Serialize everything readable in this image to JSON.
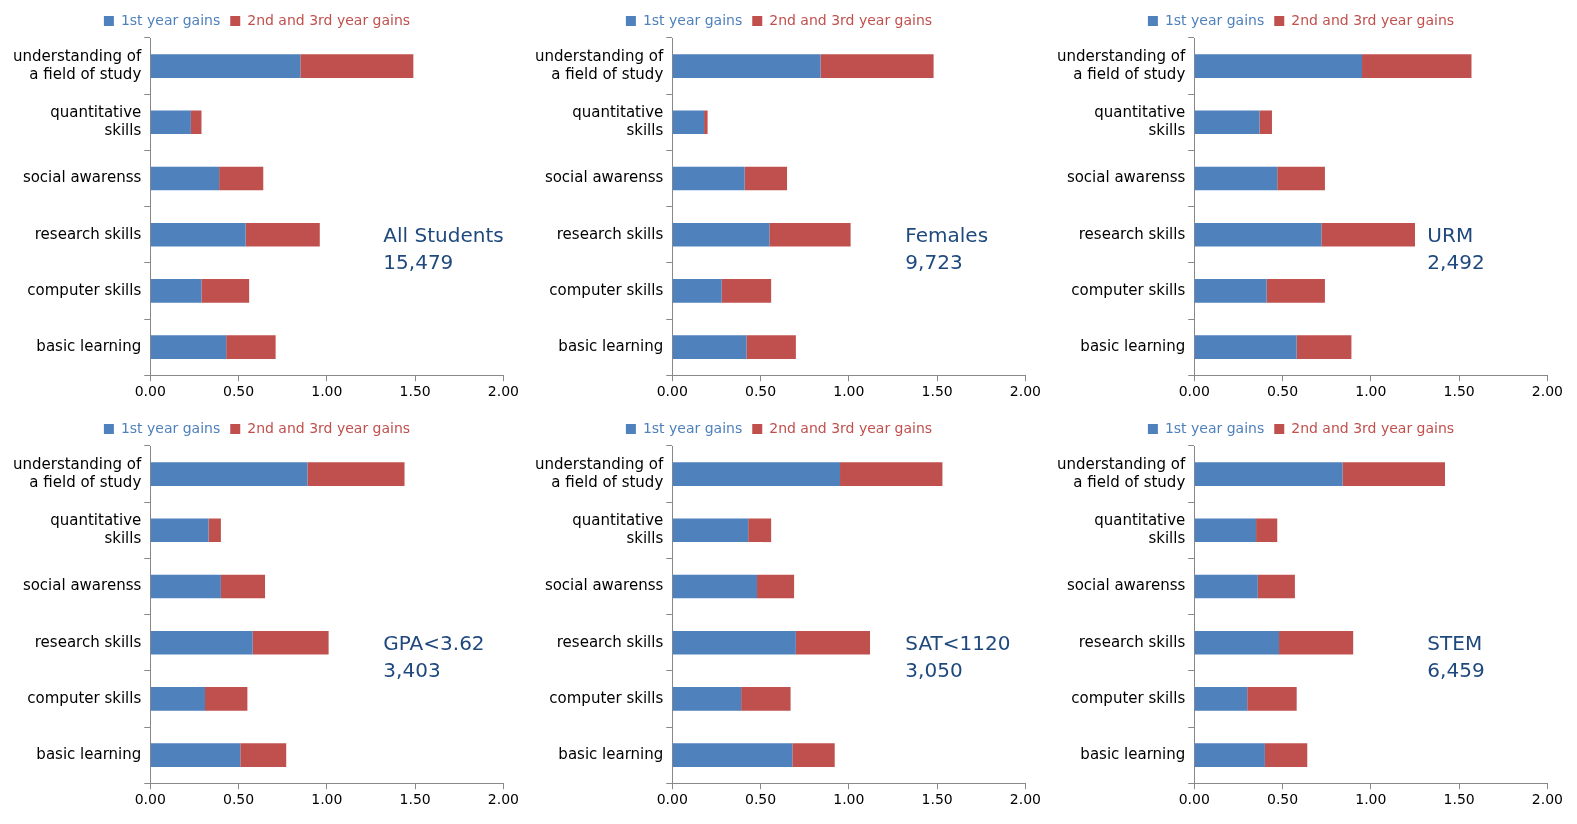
{
  "chart_data": [
    {
      "type": "bar",
      "orientation": "horizontal",
      "stacked": true,
      "legend": "top",
      "categories": [
        "understanding of a field of study",
        "quantitative skills",
        "social awarenss",
        "research skills",
        "computer skills",
        "basic learning"
      ],
      "series": [
        {
          "name": "1st year gains",
          "color": "#4f81bd",
          "values": [
            0.85,
            0.23,
            0.39,
            0.54,
            0.29,
            0.43
          ]
        },
        {
          "name": "2nd and 3rd year gains",
          "color": "#c0504d",
          "values": [
            0.64,
            0.06,
            0.25,
            0.42,
            0.27,
            0.28
          ]
        }
      ],
      "xlim": [
        0,
        2
      ],
      "xticks": [
        {
          "value": 0,
          "label": "0.00"
        },
        {
          "value": 0.5,
          "label": "0.50"
        },
        {
          "value": 1,
          "label": "1.00"
        },
        {
          "value": 1.5,
          "label": "1.50"
        },
        {
          "value": 2,
          "label": "2.00"
        }
      ],
      "annotations": [
        "All Students",
        "15,479"
      ]
    },
    {
      "type": "bar",
      "orientation": "horizontal",
      "stacked": true,
      "legend": "top",
      "categories": [
        "understanding of a field of study",
        "quantitative skills",
        "social awarenss",
        "research skills",
        "computer skills",
        "basic learning"
      ],
      "series": [
        {
          "name": "1st year gains",
          "color": "#4f81bd",
          "values": [
            0.84,
            0.18,
            0.41,
            0.55,
            0.28,
            0.42
          ]
        },
        {
          "name": "2nd and 3rd year gains",
          "color": "#c0504d",
          "values": [
            0.64,
            0.02,
            0.24,
            0.46,
            0.28,
            0.28
          ]
        }
      ],
      "xlim": [
        0,
        2
      ],
      "xticks": [
        {
          "value": 0,
          "label": "0.00"
        },
        {
          "value": 0.5,
          "label": "0.50"
        },
        {
          "value": 1,
          "label": "1.00"
        },
        {
          "value": 1.5,
          "label": "1.50"
        },
        {
          "value": 2,
          "label": "2.00"
        }
      ],
      "annotations": [
        "Females",
        "9,723"
      ]
    },
    {
      "type": "bar",
      "orientation": "horizontal",
      "stacked": true,
      "legend": "top",
      "categories": [
        "understanding of a field of study",
        "quantitative skills",
        "social awarenss",
        "research skills",
        "computer skills",
        "basic learning"
      ],
      "series": [
        {
          "name": "1st year gains",
          "color": "#4f81bd",
          "values": [
            0.95,
            0.37,
            0.47,
            0.72,
            0.41,
            0.58
          ]
        },
        {
          "name": "2nd and 3rd year gains",
          "color": "#c0504d",
          "values": [
            0.62,
            0.07,
            0.27,
            0.53,
            0.33,
            0.31
          ]
        }
      ],
      "xlim": [
        0,
        2
      ],
      "xticks": [
        {
          "value": 0,
          "label": "0.00"
        },
        {
          "value": 0.5,
          "label": "0.50"
        },
        {
          "value": 1,
          "label": "1.00"
        },
        {
          "value": 1.5,
          "label": "1.50"
        },
        {
          "value": 2,
          "label": "2.00"
        }
      ],
      "annotations": [
        "URM",
        "2,492"
      ]
    },
    {
      "type": "bar",
      "orientation": "horizontal",
      "stacked": true,
      "legend": "top",
      "categories": [
        "understanding of a field of study",
        "quantitative skills",
        "social awarenss",
        "research skills",
        "computer skills",
        "basic learning"
      ],
      "series": [
        {
          "name": "1st year gains",
          "color": "#4f81bd",
          "values": [
            0.89,
            0.33,
            0.4,
            0.58,
            0.31,
            0.51
          ]
        },
        {
          "name": "2nd and 3rd year gains",
          "color": "#c0504d",
          "values": [
            0.55,
            0.07,
            0.25,
            0.43,
            0.24,
            0.26
          ]
        }
      ],
      "xlim": [
        0,
        2
      ],
      "xticks": [
        {
          "value": 0,
          "label": "0.00"
        },
        {
          "value": 0.5,
          "label": "0.50"
        },
        {
          "value": 1,
          "label": "1.00"
        },
        {
          "value": 1.5,
          "label": "1.50"
        },
        {
          "value": 2,
          "label": "2.00"
        }
      ],
      "annotations": [
        "GPA<3.62",
        "3,403"
      ]
    },
    {
      "type": "bar",
      "orientation": "horizontal",
      "stacked": true,
      "legend": "top",
      "categories": [
        "understanding of a field of study",
        "quantitative skills",
        "social awarenss",
        "research skills",
        "computer skills",
        "basic learning"
      ],
      "series": [
        {
          "name": "1st year gains",
          "color": "#4f81bd",
          "values": [
            0.95,
            0.43,
            0.48,
            0.7,
            0.39,
            0.68
          ]
        },
        {
          "name": "2nd and 3rd year gains",
          "color": "#c0504d",
          "values": [
            0.58,
            0.13,
            0.21,
            0.42,
            0.28,
            0.24
          ]
        }
      ],
      "xlim": [
        0,
        2
      ],
      "xticks": [
        {
          "value": 0,
          "label": "0.00"
        },
        {
          "value": 0.5,
          "label": "0.50"
        },
        {
          "value": 1,
          "label": "1.00"
        },
        {
          "value": 1.5,
          "label": "1.50"
        },
        {
          "value": 2,
          "label": "2.00"
        }
      ],
      "annotations": [
        "SAT<1120",
        "3,050"
      ]
    },
    {
      "type": "bar",
      "orientation": "horizontal",
      "stacked": true,
      "legend": "top",
      "categories": [
        "understanding of a field of study",
        "quantitative skills",
        "social awarenss",
        "research skills",
        "computer skills",
        "basic learning"
      ],
      "series": [
        {
          "name": "1st year gains",
          "color": "#4f81bd",
          "values": [
            0.84,
            0.35,
            0.36,
            0.48,
            0.3,
            0.4
          ]
        },
        {
          "name": "2nd and 3rd year gains",
          "color": "#c0504d",
          "values": [
            0.58,
            0.12,
            0.21,
            0.42,
            0.28,
            0.24
          ]
        }
      ],
      "xlim": [
        0,
        2
      ],
      "xticks": [
        {
          "value": 0,
          "label": "0.00"
        },
        {
          "value": 0.5,
          "label": "0.50"
        },
        {
          "value": 1,
          "label": "1.00"
        },
        {
          "value": 1.5,
          "label": "1.50"
        },
        {
          "value": 2,
          "label": "2.00"
        }
      ],
      "annotations": [
        "STEM",
        "6,459"
      ]
    }
  ]
}
